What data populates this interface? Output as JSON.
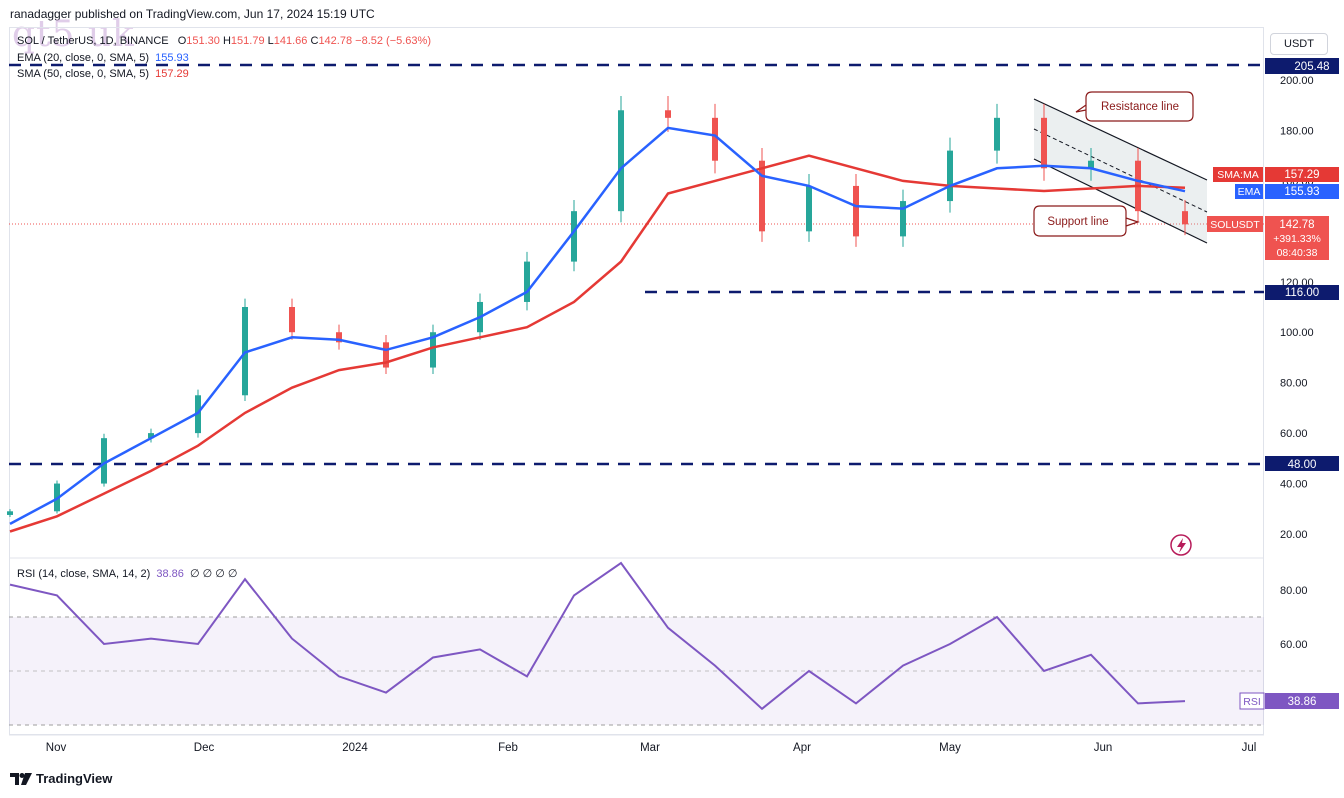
{
  "header": {
    "published": "ranadagger published on TradingView.com, Jun 17, 2024 15:19 UTC"
  },
  "watermark": "qt5 uk",
  "legend": {
    "symbol_line": "SOL / TetherUS, 1D, BINANCE",
    "ohlc": {
      "o_label": "O",
      "o": "151.30",
      "h_label": "H",
      "h": "151.79",
      "l_label": "L",
      "l": "141.66",
      "c_label": "C",
      "c": "142.78",
      "change": "−8.52 (−5.63%)"
    },
    "ema": {
      "label": "EMA (20, close, 0, SMA, 5)",
      "value": "155.93"
    },
    "sma": {
      "label": "SMA (50, close, 0, SMA, 5)",
      "value": "157.29"
    },
    "rsi": {
      "label": "RSI (14, close, SMA, 14, 2)",
      "value": "38.86",
      "extra": "∅ ∅ ∅ ∅"
    }
  },
  "currency_button": "USDT",
  "colors": {
    "up": "#26a69a",
    "down": "#ef5350",
    "ema": "#2962ff",
    "sma": "#e53935",
    "rsi": "#7e57c2",
    "dash": "#0d1b6e"
  },
  "price_axis": {
    "ticks": [
      "200.00",
      "180.00",
      "160.00",
      "140.00",
      "120.00",
      "100.00",
      "80.00",
      "60.00",
      "40.00",
      "20.00"
    ]
  },
  "price_labels": {
    "top_level": "205.48",
    "sma": {
      "tag": "SMA:MA",
      "value": "157.29"
    },
    "ema": {
      "tag": "EMA",
      "value": "155.93"
    },
    "last": {
      "tag": "SOLUSDT",
      "value": "142.78",
      "pct": "+391.33%",
      "countdown": "08:40:38"
    },
    "level_116": "116.00",
    "level_48": "48.00"
  },
  "annotations": {
    "resistance": "Resistance line",
    "support": "Support line"
  },
  "rsi_panel": {
    "ticks": [
      "80.00",
      "60.00"
    ],
    "tag": "RSI",
    "value": "38.86"
  },
  "time_axis": [
    "Nov",
    "Dec",
    "2024",
    "Feb",
    "Mar",
    "Apr",
    "May",
    "Jun",
    "Jul"
  ],
  "footer": {
    "brand": "TradingView"
  },
  "chart_data": [
    {
      "type": "line",
      "title": "SOL / TetherUS, 1D, BINANCE",
      "x": [
        "Oct 20",
        "Nov 1",
        "Nov 15",
        "Dec 1",
        "Dec 15",
        "Dec 25",
        "Jan 1",
        "Jan 15",
        "Jan 23",
        "Feb 1",
        "Feb 15",
        "Mar 1",
        "Mar 10",
        "Mar 18",
        "Apr 1",
        "Apr 8",
        "Apr 13",
        "Apr 22",
        "May 1",
        "May 10",
        "May 18",
        "May 21",
        "Jun 1",
        "Jun 6",
        "Jun 11",
        "Jun 17"
      ],
      "ylim": [
        10,
        212
      ],
      "series": [
        {
          "name": "SOL close",
          "values": [
            29,
            40,
            58,
            60,
            75,
            110,
            100,
            96,
            86,
            100,
            112,
            128,
            148,
            188,
            185,
            168,
            140,
            158,
            138,
            152,
            172,
            185,
            165,
            168,
            148,
            142.78
          ]
        },
        {
          "name": "EMA (20)",
          "values": [
            24,
            34,
            48,
            58,
            68,
            92,
            98,
            97,
            93,
            98,
            106,
            116,
            140,
            165,
            181,
            178,
            162,
            158,
            150,
            149,
            158,
            165,
            166,
            165,
            160,
            155.93
          ]
        },
        {
          "name": "SMA (50)",
          "values": [
            21,
            27,
            36,
            45,
            55,
            68,
            78,
            85,
            88,
            94,
            98,
            102,
            112,
            128,
            155,
            160,
            165,
            170,
            165,
            160,
            158,
            157,
            156,
            157,
            158,
            157.29
          ]
        }
      ],
      "horizontal_levels": [
        205.48,
        116.0,
        48.0
      ],
      "annotations": [
        "Resistance line",
        "Support line"
      ]
    },
    {
      "type": "line",
      "title": "RSI (14, close, SMA, 14, 2)",
      "x": [
        "Oct 20",
        "Nov 1",
        "Nov 15",
        "Dec 1",
        "Dec 15",
        "Dec 25",
        "Jan 1",
        "Jan 15",
        "Jan 23",
        "Feb 1",
        "Feb 15",
        "Mar 1",
        "Mar 10",
        "Mar 18",
        "Apr 1",
        "Apr 8",
        "Apr 13",
        "Apr 22",
        "May 1",
        "May 10",
        "May 18",
        "May 21",
        "Jun 1",
        "Jun 6",
        "Jun 11",
        "Jun 17"
      ],
      "ylim": [
        30,
        92
      ],
      "band": [
        30,
        70
      ],
      "series": [
        {
          "name": "RSI",
          "values": [
            82,
            78,
            60,
            62,
            60,
            84,
            62,
            48,
            42,
            55,
            58,
            48,
            78,
            90,
            66,
            52,
            36,
            50,
            38,
            52,
            60,
            70,
            50,
            56,
            38,
            38.86
          ]
        }
      ]
    }
  ]
}
